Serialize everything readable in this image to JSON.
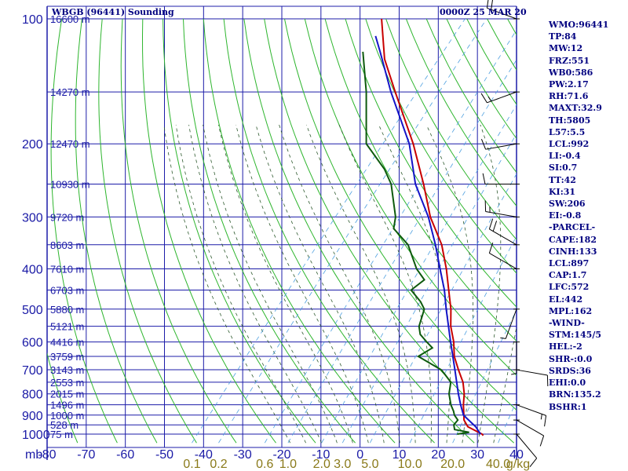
{
  "header": {
    "station": "WBGB (96441) Sounding",
    "time": "0000Z 25 MAR 20"
  },
  "colors": {
    "grid": "#1c1ca8",
    "dry_adiabat": "#2db52d",
    "moist_adiabat": "#2e5a2e",
    "mixing_ratio": "#4ea0e0",
    "temperature": "#c80000",
    "dewpoint": "#0d5a0d",
    "parcel": "#1414c8",
    "text": "#000080",
    "olive_text": "#8a7a1a"
  },
  "indices": [
    "WMO:96441",
    "TP:84",
    "MW:12",
    "FRZ:551",
    "WB0:586",
    "PW:2.17",
    "RH:71.6",
    "MAXT:32.9",
    "TH:5805",
    "L57:5.5",
    "LCL:992",
    "LI:-0.4",
    "SI:0.7",
    "TT:42",
    "KI:31",
    "SW:206",
    "EI:-0.8",
    "-PARCEL-",
    "CAPE:182",
    "CINH:133",
    "LCL:897",
    "CAP:1.7",
    "LFC:572",
    "EL:442",
    "MPL:162",
    "-WIND-",
    "STM:145/5",
    "HEL:-2",
    "SHR-:0.0",
    "SRDS:36",
    "EHI:0.0",
    "BRN:135.2",
    "BSHR:1"
  ],
  "chart_data": {
    "type": "line",
    "title": "WBGB (96441) Sounding",
    "subtitle": "0000Z 25 MAR 20",
    "xlabel": "",
    "ylabel": "mb",
    "x_axis_unit_label": "mb",
    "mixing_ratio_unit_label": "g/kg",
    "xlim": [
      -80,
      40
    ],
    "ylim_mb": [
      1000,
      100
    ],
    "y_scale": "log",
    "grid": true,
    "temperature_ticks": [
      -80,
      -70,
      -60,
      -50,
      -40,
      -30,
      -20,
      -10,
      0,
      10,
      20,
      30,
      40
    ],
    "temperature_tick_labels": [
      "-80",
      "-70",
      "-60",
      "-50",
      "-40",
      "-30",
      "-20",
      "-10",
      "0",
      "10",
      "20",
      "30",
      "40"
    ],
    "pressure_ticks": [
      100,
      200,
      300,
      400,
      500,
      600,
      700,
      800,
      900,
      1000
    ],
    "pressure_tick_labels": [
      "100",
      "200",
      "300",
      "400",
      "500",
      "600",
      "700",
      "800",
      "900",
      "1000"
    ],
    "height_labels": [
      {
        "p": 100,
        "label": "16600 m"
      },
      {
        "p": 150,
        "label": "14270 m"
      },
      {
        "p": 200,
        "label": "12470 m"
      },
      {
        "p": 250,
        "label": "10930 m"
      },
      {
        "p": 300,
        "label": "9720 m"
      },
      {
        "p": 350,
        "label": "8603 m"
      },
      {
        "p": 400,
        "label": "7610 m"
      },
      {
        "p": 450,
        "label": "6703 m"
      },
      {
        "p": 500,
        "label": "5880 m"
      },
      {
        "p": 550,
        "label": "5121 m"
      },
      {
        "p": 600,
        "label": "4416 m"
      },
      {
        "p": 650,
        "label": "3759 m"
      },
      {
        "p": 700,
        "label": "3143 m"
      },
      {
        "p": 750,
        "label": "2553 m"
      },
      {
        "p": 800,
        "label": "2015 m"
      },
      {
        "p": 850,
        "label": "1496 m"
      },
      {
        "p": 900,
        "label": "1000 m"
      },
      {
        "p": 950,
        "label": "528 m"
      },
      {
        "p": 1000,
        "label": "75 m"
      }
    ],
    "mixing_ratio_labels": [
      "0.1",
      "0.2",
      "0.6",
      "1.0",
      "2.0",
      "3.0",
      "5.0",
      "10.0",
      "20.0",
      "40.0"
    ],
    "mixing_ratio_values": [
      0.1,
      0.2,
      0.6,
      1.0,
      2.0,
      3.0,
      5.0,
      10.0,
      20.0,
      40.0
    ],
    "series": [
      {
        "role": "temperature",
        "points": [
          {
            "p": 1008,
            "t": 31.8
          },
          {
            "p": 1000,
            "t": 31.2
          },
          {
            "p": 960,
            "t": 26.0
          },
          {
            "p": 925,
            "t": 23.6
          },
          {
            "p": 880,
            "t": 21.6
          },
          {
            "p": 850,
            "t": 20.2
          },
          {
            "p": 800,
            "t": 18.1
          },
          {
            "p": 750,
            "t": 15.3
          },
          {
            "p": 700,
            "t": 11.5
          },
          {
            "p": 650,
            "t": 7.6
          },
          {
            "p": 600,
            "t": 4.4
          },
          {
            "p": 550,
            "t": 0.3
          },
          {
            "p": 500,
            "t": -3.3
          },
          {
            "p": 450,
            "t": -7.9
          },
          {
            "p": 400,
            "t": -13.0
          },
          {
            "p": 350,
            "t": -19.3
          },
          {
            "p": 300,
            "t": -28.1
          },
          {
            "p": 250,
            "t": -36.8
          },
          {
            "p": 200,
            "t": -48.0
          },
          {
            "p": 150,
            "t": -63.6
          },
          {
            "p": 125,
            "t": -73.3
          },
          {
            "p": 100,
            "t": -82.6
          }
        ]
      },
      {
        "role": "dewpoint",
        "points": [
          {
            "p": 1000,
            "t": 24.8
          },
          {
            "p": 990,
            "t": 27.5
          },
          {
            "p": 975,
            "t": 23.2
          },
          {
            "p": 950,
            "t": 22.0
          },
          {
            "p": 925,
            "t": 22.0
          },
          {
            "p": 900,
            "t": 20.1
          },
          {
            "p": 880,
            "t": 19.0
          },
          {
            "p": 850,
            "t": 17.0
          },
          {
            "p": 800,
            "t": 14.2
          },
          {
            "p": 750,
            "t": 12.2
          },
          {
            "p": 720,
            "t": 9.2
          },
          {
            "p": 700,
            "t": 7.1
          },
          {
            "p": 650,
            "t": -1.6
          },
          {
            "p": 620,
            "t": 0.2
          },
          {
            "p": 600,
            "t": -2.5
          },
          {
            "p": 575,
            "t": -5.8
          },
          {
            "p": 550,
            "t": -7.8
          },
          {
            "p": 500,
            "t": -10.1
          },
          {
            "p": 480,
            "t": -12.6
          },
          {
            "p": 450,
            "t": -17.5
          },
          {
            "p": 425,
            "t": -16.3
          },
          {
            "p": 400,
            "t": -20.6
          },
          {
            "p": 350,
            "t": -27.9
          },
          {
            "p": 320,
            "t": -35.0
          },
          {
            "p": 300,
            "t": -37.0
          },
          {
            "p": 250,
            "t": -45.1
          },
          {
            "p": 230,
            "t": -50.0
          },
          {
            "p": 200,
            "t": -60.0
          },
          {
            "p": 150,
            "t": -71.0
          },
          {
            "p": 120,
            "t": -80.4
          }
        ]
      },
      {
        "role": "parcel",
        "points": [
          {
            "p": 1000,
            "t": 30.8
          },
          {
            "p": 960,
            "t": 28.0
          },
          {
            "p": 900,
            "t": 22.4
          },
          {
            "p": 850,
            "t": 19.5
          },
          {
            "p": 800,
            "t": 16.6
          },
          {
            "p": 700,
            "t": 10.6
          },
          {
            "p": 600,
            "t": 3.6
          },
          {
            "p": 500,
            "t": -4.5
          },
          {
            "p": 450,
            "t": -9.0
          },
          {
            "p": 400,
            "t": -14.6
          },
          {
            "p": 350,
            "t": -20.9
          },
          {
            "p": 300,
            "t": -28.6
          },
          {
            "p": 250,
            "t": -38.9
          },
          {
            "p": 200,
            "t": -49.0
          },
          {
            "p": 150,
            "t": -64.7
          },
          {
            "p": 120,
            "t": -76.0
          },
          {
            "p": 110,
            "t": -80.5
          }
        ]
      }
    ],
    "wind_barbs": [
      {
        "p": 100,
        "dir": 290,
        "spd": 20
      },
      {
        "p": 150,
        "dir": 250,
        "spd": 15
      },
      {
        "p": 200,
        "dir": 260,
        "spd": 10
      },
      {
        "p": 250,
        "dir": 270,
        "spd": 10
      },
      {
        "p": 300,
        "dir": 280,
        "spd": 15
      },
      {
        "p": 350,
        "dir": 300,
        "spd": 20
      },
      {
        "p": 400,
        "dir": 300,
        "spd": 10
      },
      {
        "p": 500,
        "dir": 200,
        "spd": 5
      },
      {
        "p": 600,
        "dir": 180,
        "spd": 5
      },
      {
        "p": 700,
        "dir": 100,
        "spd": 10
      },
      {
        "p": 850,
        "dir": 110,
        "spd": 15
      },
      {
        "p": 925,
        "dir": 120,
        "spd": 10
      },
      {
        "p": 1000,
        "dir": 140,
        "spd": 10
      }
    ]
  }
}
